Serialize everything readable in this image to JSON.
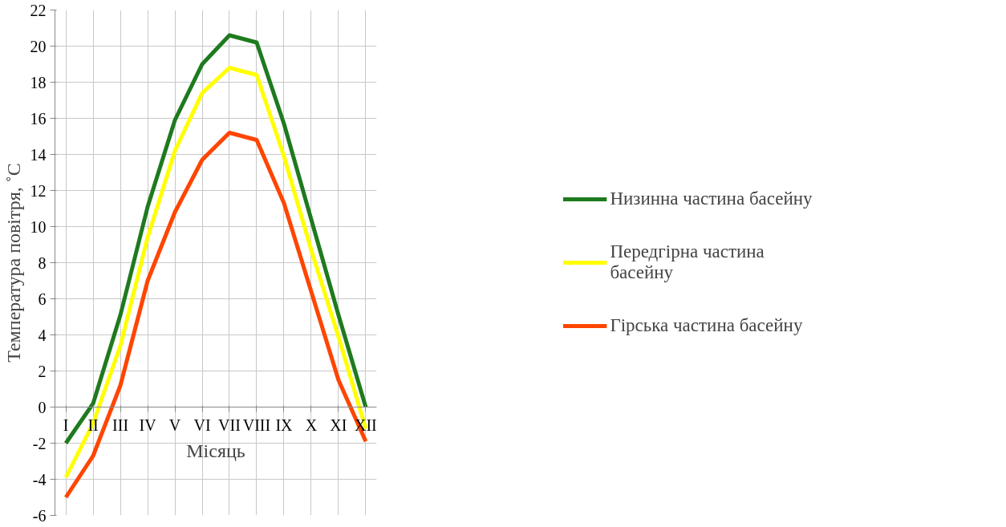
{
  "chart_data": {
    "type": "line",
    "xlabel": "Місяць",
    "ylabel": "Температура повітря, ˚С",
    "categories": [
      "I",
      "II",
      "III",
      "IV",
      "V",
      "VI",
      "VII",
      "VIII",
      "IX",
      "X",
      "XI",
      "XII"
    ],
    "series": [
      {
        "name": "Низинна частина басейну",
        "color": "#1e7a1e",
        "values": [
          -2.0,
          0.2,
          5.1,
          11.1,
          15.9,
          19.0,
          20.6,
          20.2,
          15.7,
          10.4,
          5.1,
          0.0
        ]
      },
      {
        "name": "Передгірна частина басейну",
        "color": "#ffff00",
        "values": [
          -3.9,
          -0.9,
          3.4,
          9.4,
          14.2,
          17.4,
          18.8,
          18.4,
          13.9,
          8.7,
          3.9,
          -1.2
        ]
      },
      {
        "name": "Гірська частина басейну",
        "color": "#ff4500",
        "values": [
          -5.0,
          -2.7,
          1.2,
          7.0,
          10.8,
          13.7,
          15.2,
          14.8,
          11.3,
          6.4,
          1.5,
          -1.9
        ]
      }
    ],
    "ylim": [
      -6,
      22
    ],
    "yticks": [
      -6,
      -4,
      -2,
      0,
      2,
      4,
      6,
      8,
      10,
      12,
      14,
      16,
      18,
      20,
      22
    ],
    "grid": true,
    "legend": "right",
    "marker": "none",
    "line_style": "solid"
  }
}
